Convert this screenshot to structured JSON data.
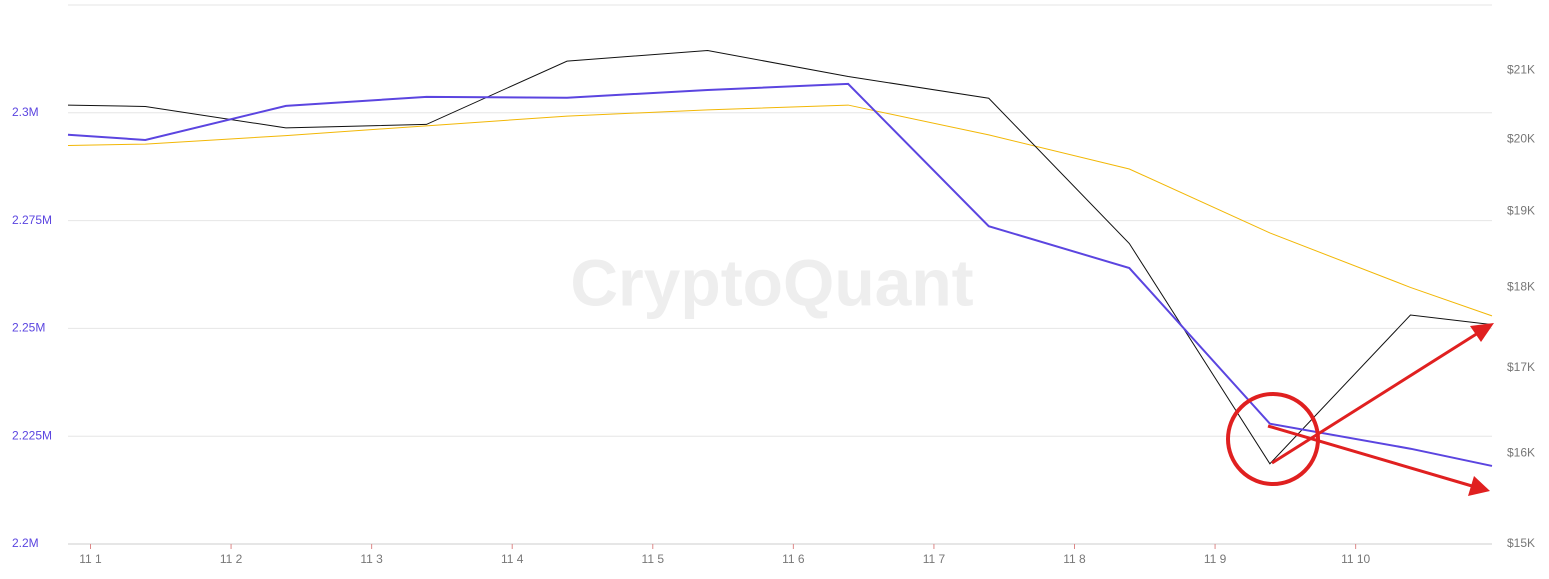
{
  "chart_data": {
    "type": "line",
    "watermark": "CryptoQuant",
    "x": [
      0.84,
      1.39,
      2.39,
      3.39,
      4.39,
      5.39,
      6.39,
      7.39,
      8.39,
      9.39,
      10.39,
      10.97
    ],
    "xlim": [
      0.84,
      10.97
    ],
    "xticks": [
      {
        "value": 1,
        "label": "11 1"
      },
      {
        "value": 2,
        "label": "11 2"
      },
      {
        "value": 3,
        "label": "11 3"
      },
      {
        "value": 4,
        "label": "11 4"
      },
      {
        "value": 5,
        "label": "11 5"
      },
      {
        "value": 6,
        "label": "11 6"
      },
      {
        "value": 7,
        "label": "11 7"
      },
      {
        "value": 8,
        "label": "11 8"
      },
      {
        "value": 9,
        "label": "11 9"
      },
      {
        "value": 10,
        "label": "11 10"
      }
    ],
    "ylim": [
      2200000,
      2325000
    ],
    "yticks": [
      {
        "value": 2200000,
        "label": "2.2M"
      },
      {
        "value": 2225000,
        "label": "2.225M"
      },
      {
        "value": 2250000,
        "label": "2.25M"
      },
      {
        "value": 2275000,
        "label": "2.275M"
      },
      {
        "value": 2300000,
        "label": "2.3M"
      }
    ],
    "y2lim": [
      15000,
      22000
    ],
    "y2log": true,
    "y2ticks": [
      {
        "value": 15000,
        "label": "$15K"
      },
      {
        "value": 16000,
        "label": "$16K"
      },
      {
        "value": 17000,
        "label": "$17K"
      },
      {
        "value": 18000,
        "label": "$18K"
      },
      {
        "value": 19000,
        "label": "$19K"
      },
      {
        "value": 20000,
        "label": "$20K"
      },
      {
        "value": 21000,
        "label": "$21K"
      }
    ],
    "grid": true,
    "series": [
      {
        "color": "#f2b705",
        "axis": "y2",
        "width": 1,
        "values": [
          19910,
          19930,
          20050,
          20190,
          20330,
          20420,
          20490,
          20060,
          19580,
          18710,
          18000,
          17640
        ]
      },
      {
        "color": "#111111",
        "axis": "y2",
        "width": 1,
        "values": [
          20490,
          20470,
          20160,
          20210,
          21140,
          21300,
          20910,
          20590,
          18570,
          15880,
          17650,
          17530
        ]
      },
      {
        "color": "#5b45e0",
        "axis": "y",
        "width": 2,
        "values": [
          2294900,
          2293700,
          2301600,
          2303700,
          2303500,
          2305300,
          2306700,
          2273700,
          2264000,
          2227900,
          2222100,
          2218100
        ]
      }
    ]
  }
}
